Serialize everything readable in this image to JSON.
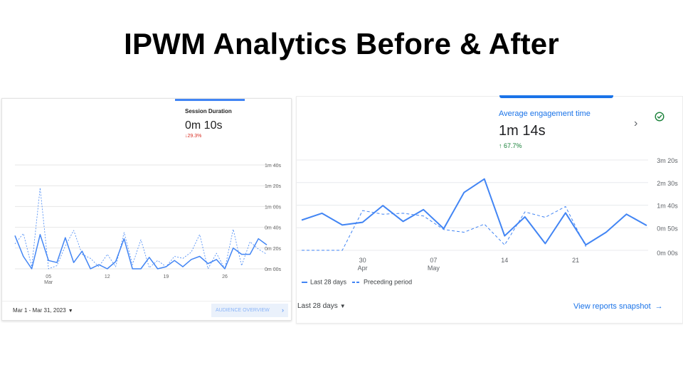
{
  "slide_title": "IPWM Analytics Before & After",
  "before": {
    "metric_label": "Session Duration",
    "metric_value": "0m 10s",
    "metric_change": "↓29.3%",
    "date_range": "Mar 1 - Mar 31, 2023",
    "button_label": "AUDIENCE OVERVIEW",
    "colors": {
      "accent": "#4285f4",
      "negative": "#d93025"
    }
  },
  "after": {
    "metric_label": "Average engagement time",
    "metric_value": "1m 14s",
    "metric_change": "↑ 67.7%",
    "legend_current": "Last 28 days",
    "legend_previous": "Preceding period",
    "date_range": "Last 28 days",
    "link_label": "View reports snapshot",
    "icons": [
      "chevron-right-icon",
      "check-circle-icon",
      "arrow-right-icon",
      "caret-down-icon"
    ],
    "colors": {
      "accent": "#1a73e8",
      "positive": "#188038"
    }
  },
  "chart_data": [
    {
      "type": "line",
      "title": "Session Duration",
      "y_unit": "seconds",
      "y_ticks": [
        "0m 00s",
        "0m 20s",
        "0m 40s",
        "1m 00s",
        "1m 20s",
        "1m 40s"
      ],
      "y_tick_values": [
        0,
        20,
        40,
        60,
        80,
        100
      ],
      "ylim": [
        0,
        100
      ],
      "x_ticks": [
        {
          "day": 5,
          "label": "05",
          "sublabel": "Mar"
        },
        {
          "day": 12,
          "label": "12"
        },
        {
          "day": 19,
          "label": "19"
        },
        {
          "day": 26,
          "label": "26"
        }
      ],
      "x": [
        1,
        2,
        3,
        4,
        5,
        6,
        7,
        8,
        9,
        10,
        11,
        12,
        13,
        14,
        15,
        16,
        17,
        18,
        19,
        20,
        21,
        22,
        23,
        24,
        25,
        26,
        27,
        28,
        29,
        30,
        31
      ],
      "series": [
        {
          "style": "solid",
          "values": [
            32,
            12,
            0,
            33,
            8,
            6,
            30,
            6,
            17,
            0,
            4,
            0,
            7,
            29,
            0,
            0,
            11,
            0,
            2,
            8,
            2,
            9,
            12,
            5,
            9,
            0,
            20,
            14,
            14,
            29,
            23
          ]
        },
        {
          "style": "dotted",
          "values": [
            24,
            34,
            2,
            78,
            0,
            3,
            22,
            37,
            14,
            10,
            2,
            14,
            2,
            35,
            4,
            28,
            1,
            8,
            2,
            12,
            10,
            16,
            33,
            0,
            15,
            0,
            38,
            3,
            26,
            19,
            14
          ]
        }
      ],
      "grid": true
    },
    {
      "type": "line",
      "title": "Average engagement time",
      "y_unit": "seconds",
      "y_ticks": [
        "0m 00s",
        "0m 50s",
        "1m 40s",
        "2m 30s",
        "3m 20s"
      ],
      "y_tick_values": [
        0,
        50,
        100,
        150,
        200
      ],
      "ylim": [
        0,
        200
      ],
      "x_ticks": [
        {
          "date": "2023-04-30",
          "label": "30",
          "sublabel": "Apr"
        },
        {
          "date": "2023-05-07",
          "label": "07",
          "sublabel": "May"
        },
        {
          "date": "2023-05-14",
          "label": "14"
        },
        {
          "date": "2023-05-21",
          "label": "21"
        }
      ],
      "x": [
        "2023-04-24",
        "2023-04-25",
        "2023-04-26",
        "2023-04-27",
        "2023-04-28",
        "2023-04-29",
        "2023-04-30",
        "2023-05-01",
        "2023-05-02",
        "2023-05-03",
        "2023-05-04",
        "2023-05-05",
        "2023-05-06",
        "2023-05-07",
        "2023-05-08",
        "2023-05-09",
        "2023-05-10",
        "2023-05-11",
        "2023-05-12",
        "2023-05-13",
        "2023-05-14",
        "2023-05-15",
        "2023-05-16",
        "2023-05-17",
        "2023-05-18",
        "2023-05-19",
        "2023-05-20",
        "2023-05-21",
        "2023-05-22",
        "2023-05-23",
        "2023-05-24",
        "2023-05-25",
        "2023-05-26",
        "2023-05-27",
        "2023-05-28"
      ],
      "series": [
        {
          "name": "Last 28 days",
          "style": "solid",
          "values": [
            {
              "x": "2023-04-24",
              "y": 67
            },
            {
              "x": "2023-04-26",
              "y": 82
            },
            {
              "x": "2023-04-28",
              "y": 56
            },
            {
              "x": "2023-04-30",
              "y": 62
            },
            {
              "x": "2023-05-02",
              "y": 99
            },
            {
              "x": "2023-05-04",
              "y": 64
            },
            {
              "x": "2023-05-06",
              "y": 90
            },
            {
              "x": "2023-05-08",
              "y": 48
            },
            {
              "x": "2023-05-10",
              "y": 128
            },
            {
              "x": "2023-05-12",
              "y": 158
            },
            {
              "x": "2023-05-14",
              "y": 32
            },
            {
              "x": "2023-05-16",
              "y": 74
            },
            {
              "x": "2023-05-18",
              "y": 15
            },
            {
              "x": "2023-05-20",
              "y": 83
            },
            {
              "x": "2023-05-22",
              "y": 12
            },
            {
              "x": "2023-05-24",
              "y": 40
            },
            {
              "x": "2023-05-26",
              "y": 80
            },
            {
              "x": "2023-05-28",
              "y": 55
            }
          ]
        },
        {
          "name": "Preceding period",
          "style": "dashed",
          "values": [
            {
              "x": "2023-04-24",
              "y": 0
            },
            {
              "x": "2023-04-26",
              "y": 0
            },
            {
              "x": "2023-04-28",
              "y": 0
            },
            {
              "x": "2023-04-30",
              "y": 88
            },
            {
              "x": "2023-05-02",
              "y": 80
            },
            {
              "x": "2023-05-04",
              "y": 82
            },
            {
              "x": "2023-05-06",
              "y": 76
            },
            {
              "x": "2023-05-08",
              "y": 46
            },
            {
              "x": "2023-05-10",
              "y": 40
            },
            {
              "x": "2023-05-12",
              "y": 58
            },
            {
              "x": "2023-05-14",
              "y": 12
            },
            {
              "x": "2023-05-16",
              "y": 85
            },
            {
              "x": "2023-05-18",
              "y": 73
            },
            {
              "x": "2023-05-20",
              "y": 97
            },
            {
              "x": "2023-05-22",
              "y": 8
            }
          ]
        }
      ],
      "grid": true
    }
  ]
}
